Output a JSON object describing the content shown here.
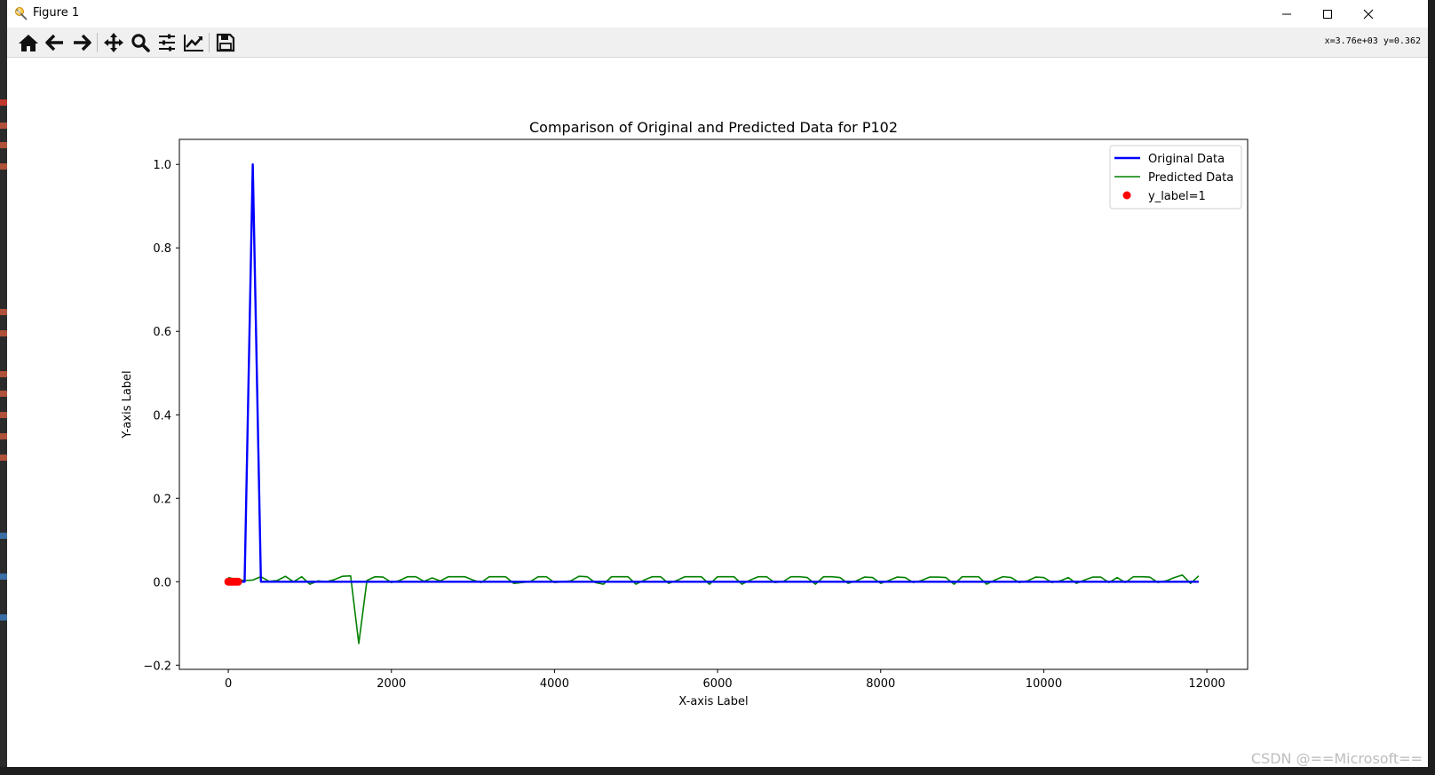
{
  "window": {
    "title": "Figure 1",
    "minimize_icon": "minimize-icon",
    "maximize_icon": "maximize-icon",
    "close_icon": "close-icon"
  },
  "toolbar": {
    "buttons": [
      {
        "name": "home-button",
        "icon": "home-icon"
      },
      {
        "name": "back-button",
        "icon": "arrow-left-icon"
      },
      {
        "name": "forward-button",
        "icon": "arrow-right-icon"
      },
      {
        "name": "pan-button",
        "icon": "move-icon"
      },
      {
        "name": "zoom-button",
        "icon": "magnifier-icon"
      },
      {
        "name": "configure-subplots-button",
        "icon": "sliders-icon"
      },
      {
        "name": "edit-axis-button",
        "icon": "line-chart-icon"
      },
      {
        "name": "save-button",
        "icon": "floppy-disk-icon"
      }
    ],
    "coords": "x=3.76e+03  y=0.362"
  },
  "watermark": "CSDN @==Microsoft==",
  "chart_data": {
    "type": "line",
    "title": "Comparison of Original and Predicted Data for P102",
    "xlabel": "X-axis Label",
    "ylabel": "Y-axis Label",
    "xlim": [
      -600,
      12500
    ],
    "ylim": [
      -0.21,
      1.06
    ],
    "xticks": [
      0,
      2000,
      4000,
      6000,
      8000,
      10000,
      12000
    ],
    "xtick_labels": [
      "0",
      "2000",
      "4000",
      "6000",
      "8000",
      "10000",
      "12000"
    ],
    "yticks": [
      -0.2,
      0.0,
      0.2,
      0.4,
      0.6,
      0.8,
      1.0
    ],
    "ytick_labels": [
      "−0.2",
      "0.0",
      "0.2",
      "0.4",
      "0.6",
      "0.8",
      "1.0"
    ],
    "legend_position": "upper right",
    "grid": false,
    "series": [
      {
        "name": "Original Data",
        "type": "line",
        "color": "#0000ff",
        "x": [
          0,
          100,
          200,
          300,
          400,
          500,
          11900
        ],
        "y": [
          0.0,
          0.0,
          0.0,
          1.0,
          0.0,
          0.0,
          0.0
        ]
      },
      {
        "name": "Predicted Data",
        "type": "line",
        "color": "#008000",
        "x": [
          0,
          100,
          200,
          300,
          400,
          500,
          600,
          700,
          800,
          900,
          1000,
          1100,
          1200,
          1300,
          1400,
          1500,
          1600,
          1700,
          1800,
          1900,
          2000,
          2100,
          2200,
          2300,
          2400,
          2500,
          2600,
          2700,
          2800,
          2900,
          3000,
          3100,
          3200,
          3300,
          3400,
          3500,
          3600,
          3700,
          3800,
          3900,
          4000,
          4100,
          4200,
          4300,
          4400,
          4500,
          4600,
          4700,
          4800,
          4900,
          5000,
          5100,
          5200,
          5300,
          5400,
          5500,
          5600,
          5700,
          5800,
          5900,
          6000,
          6100,
          6200,
          6300,
          6400,
          6500,
          6600,
          6700,
          6800,
          6900,
          7000,
          7100,
          7200,
          7300,
          7400,
          7500,
          7600,
          7700,
          7800,
          7900,
          8000,
          8100,
          8200,
          8300,
          8400,
          8500,
          8600,
          8700,
          8800,
          8900,
          9000,
          9100,
          9200,
          9300,
          9400,
          9500,
          9600,
          9700,
          9800,
          9900,
          10000,
          10100,
          10200,
          10300,
          10400,
          10500,
          10600,
          10700,
          10800,
          10900,
          11000,
          11100,
          11200,
          11300,
          11400,
          11500,
          11600,
          11700,
          11800,
          11900
        ],
        "y": [
          0.01,
          0.005,
          0.003,
          0.004,
          0.012,
          0.001,
          0.003,
          0.013,
          0.0,
          0.012,
          -0.006,
          0.002,
          0.0,
          0.005,
          0.013,
          0.014,
          -0.148,
          0.003,
          0.012,
          0.011,
          -0.002,
          0.003,
          0.012,
          0.012,
          0.001,
          0.009,
          0.002,
          0.012,
          0.012,
          0.012,
          0.004,
          -0.002,
          0.012,
          0.012,
          0.012,
          -0.004,
          -0.002,
          0.0,
          0.012,
          0.012,
          -0.002,
          0.0,
          0.002,
          0.013,
          0.012,
          -0.002,
          -0.006,
          0.012,
          0.012,
          0.012,
          -0.006,
          0.004,
          0.012,
          0.012,
          -0.004,
          0.003,
          0.012,
          0.012,
          0.012,
          -0.006,
          0.012,
          0.012,
          0.012,
          -0.006,
          0.004,
          0.012,
          0.012,
          -0.002,
          0.0,
          0.012,
          0.012,
          0.01,
          -0.006,
          0.012,
          0.012,
          0.01,
          -0.004,
          0.002,
          0.011,
          0.01,
          -0.004,
          0.003,
          0.011,
          0.01,
          -0.002,
          0.003,
          0.011,
          0.011,
          0.01,
          -0.006,
          0.012,
          0.012,
          0.012,
          -0.006,
          0.004,
          0.012,
          0.01,
          -0.002,
          0.002,
          0.011,
          0.01,
          -0.002,
          0.002,
          0.01,
          -0.004,
          0.004,
          0.011,
          0.011,
          -0.002,
          0.01,
          -0.002,
          0.012,
          0.012,
          0.011,
          -0.002,
          0.002,
          0.01,
          0.016,
          -0.004,
          0.014
        ]
      },
      {
        "name": "y_label=1",
        "type": "scatter",
        "color": "#ff0000",
        "x": [
          0,
          20,
          40,
          60,
          80,
          100,
          120
        ],
        "y": [
          0.0,
          0.0,
          0.0,
          0.0,
          0.0,
          0.0,
          0.0
        ]
      }
    ]
  }
}
